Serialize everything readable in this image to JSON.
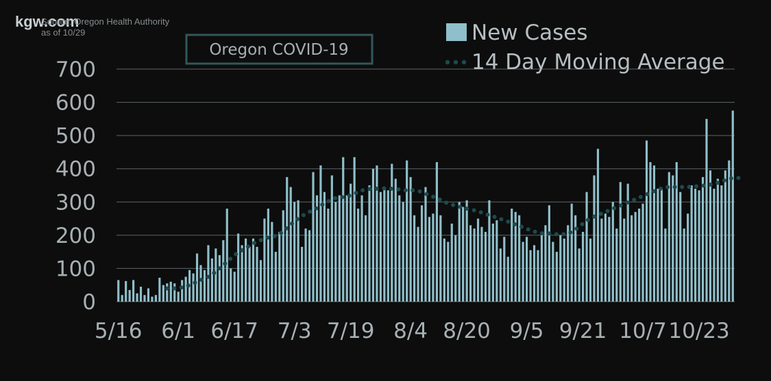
{
  "branding": {
    "logo": "kgw.com"
  },
  "source": {
    "line1": "Source: Oregon Health Authority",
    "line2": "as of 10/29"
  },
  "chart_data": {
    "type": "bar",
    "title": "Oregon COVID-19",
    "xlabel": "",
    "ylabel": "",
    "ylim": [
      0,
      700
    ],
    "yticks": [
      0,
      100,
      200,
      300,
      400,
      500,
      600,
      700
    ],
    "xticks": [
      "5/16",
      "6/1",
      "6/17",
      "7/3",
      "7/19",
      "8/4",
      "8/20",
      "9/5",
      "9/21",
      "10/7",
      "10/23"
    ],
    "grid": true,
    "legend_position": "top-right",
    "colors": {
      "bars": "#8fbfca",
      "average": "#1e4a4e",
      "grid": "#5f6568",
      "title_box": "#33585a"
    },
    "series": [
      {
        "name": "New Cases",
        "type": "bar",
        "values": [
          65,
          20,
          62,
          35,
          65,
          25,
          45,
          20,
          40,
          15,
          20,
          72,
          50,
          55,
          60,
          55,
          30,
          65,
          75,
          95,
          85,
          145,
          110,
          95,
          170,
          130,
          160,
          140,
          185,
          280,
          100,
          90,
          205,
          170,
          190,
          165,
          190,
          165,
          125,
          250,
          280,
          240,
          150,
          210,
          275,
          375,
          345,
          300,
          305,
          165,
          220,
          215,
          390,
          320,
          410,
          330,
          280,
          380,
          300,
          320,
          435,
          320,
          355,
          435,
          280,
          320,
          260,
          350,
          400,
          410,
          330,
          340,
          335,
          415,
          370,
          320,
          300,
          425,
          375,
          260,
          225,
          290,
          345,
          255,
          265,
          420,
          260,
          190,
          180,
          235,
          200,
          300,
          285,
          305,
          230,
          220,
          250,
          225,
          210,
          305,
          235,
          245,
          160,
          195,
          135,
          280,
          270,
          260,
          180,
          195,
          155,
          170,
          155,
          200,
          230,
          290,
          180,
          150,
          200,
          190,
          230,
          295,
          260,
          160,
          210,
          330,
          190,
          380,
          460,
          250,
          265,
          255,
          300,
          220,
          360,
          250,
          355,
          260,
          270,
          280,
          295,
          485,
          420,
          410,
          340,
          340,
          220,
          390,
          380,
          420,
          330,
          220,
          265,
          350,
          340,
          335,
          375,
          550,
          395,
          340,
          370,
          350,
          395,
          425,
          575
        ]
      },
      {
        "name": "14 Day Moving Average",
        "type": "line",
        "values": [
          null,
          null,
          null,
          null,
          null,
          null,
          null,
          null,
          null,
          null,
          null,
          null,
          null,
          40,
          40,
          40,
          41,
          43,
          46,
          50,
          55,
          60,
          65,
          70,
          75,
          82,
          90,
          100,
          110,
          120,
          130,
          140,
          148,
          155,
          162,
          168,
          175,
          180,
          185,
          190,
          193,
          196,
          198,
          203,
          212,
          222,
          232,
          241,
          250,
          258,
          264,
          270,
          276,
          282,
          289,
          296,
          302,
          308,
          312,
          314,
          315,
          317,
          320,
          325,
          330,
          335,
          337,
          339,
          340,
          340,
          341,
          341,
          340,
          340,
          339,
          338,
          336,
          335,
          335,
          335,
          333,
          330,
          325,
          320,
          316,
          312,
          306,
          300,
          296,
          292,
          289,
          286,
          283,
          280,
          277,
          275,
          272,
          268,
          264,
          260,
          257,
          253,
          249,
          245,
          241,
          236,
          232,
          228,
          224,
          219,
          215,
          211,
          208,
          206,
          205,
          205,
          204,
          203,
          203,
          203,
          205,
          210,
          217,
          226,
          235,
          244,
          250,
          256,
          261,
          265,
          270,
          275,
          280,
          284,
          289,
          294,
          299,
          304,
          308,
          313,
          318,
          323,
          328,
          333,
          337,
          341,
          344,
          345,
          345,
          345,
          345,
          345,
          345,
          346,
          347,
          348,
          349,
          350,
          352,
          355,
          358,
          362,
          366,
          370,
          372,
          373,
          372
        ]
      }
    ]
  }
}
